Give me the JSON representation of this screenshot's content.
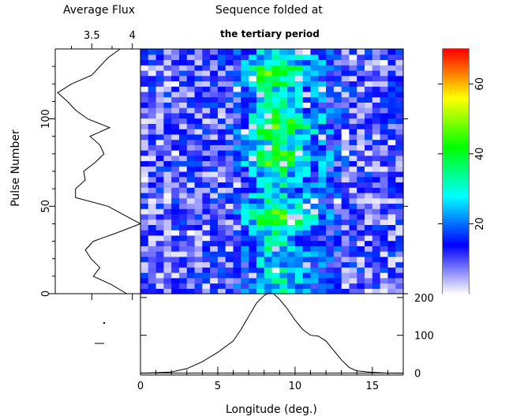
{
  "header": {
    "left_title": "Average Flux",
    "right_title_line1": "Sequence folded at",
    "right_title_line2": "the tertiary period"
  },
  "axes": {
    "ylabel": "Pulse Number",
    "xlabel": "Longitude (deg.)"
  },
  "chart_data": [
    {
      "type": "heatmap",
      "id": "pulse-stack",
      "xlabel": "Longitude (deg.)",
      "ylabel": "Pulse Number",
      "xlim": [
        0,
        17
      ],
      "ylim": [
        0,
        140
      ],
      "x_ticks": [
        0,
        5,
        10,
        15
      ],
      "y_ticks": [
        0,
        50,
        100
      ],
      "n_longitude_bins": 34,
      "n_pulse_rows": 46,
      "colorbar": {
        "range": [
          0,
          70
        ],
        "ticks": [
          20,
          40,
          60
        ],
        "colormap": [
          "#ffffff",
          "#0000ff",
          "#00ffff",
          "#00ff00",
          "#ffff00",
          "#ff0000"
        ]
      },
      "on_pulse_center_deg": 8.6,
      "peak_pulse_rows": [
        44,
        78,
        97,
        127
      ]
    },
    {
      "type": "line",
      "id": "average-flux",
      "title": "Average Flux",
      "x_ticks": [
        3.5,
        4
      ],
      "xlim": [
        3.05,
        4.1
      ],
      "ylim": [
        0,
        140
      ],
      "y": [
        0,
        5,
        10,
        15,
        20,
        25,
        30,
        35,
        40,
        45,
        50,
        55,
        60,
        65,
        70,
        75,
        80,
        85,
        90,
        95,
        100,
        105,
        110,
        115,
        120,
        125,
        130,
        135,
        140
      ],
      "x": [
        3.93,
        3.75,
        3.52,
        3.6,
        3.49,
        3.42,
        3.52,
        3.82,
        4.1,
        3.9,
        3.7,
        3.3,
        3.3,
        3.42,
        3.4,
        3.54,
        3.65,
        3.6,
        3.48,
        3.72,
        3.45,
        3.3,
        3.2,
        3.08,
        3.25,
        3.5,
        3.6,
        3.7,
        3.85
      ]
    },
    {
      "type": "line",
      "id": "integrated-profile",
      "xlabel": "Longitude (deg.)",
      "xlim": [
        0,
        17
      ],
      "ylim": [
        -5,
        210
      ],
      "y_ticks": [
        0,
        100,
        200
      ],
      "x": [
        0,
        1,
        2,
        3,
        4,
        5,
        6,
        6.5,
        7,
        7.5,
        8,
        8.3,
        8.6,
        9,
        9.5,
        10,
        10.5,
        11,
        11.5,
        12,
        12.5,
        13,
        13.5,
        14,
        15,
        16,
        17
      ],
      "y": [
        0,
        1,
        3,
        12,
        30,
        55,
        85,
        115,
        150,
        185,
        205,
        212,
        210,
        195,
        170,
        140,
        115,
        100,
        98,
        85,
        60,
        35,
        15,
        6,
        2,
        0,
        0
      ]
    }
  ]
}
